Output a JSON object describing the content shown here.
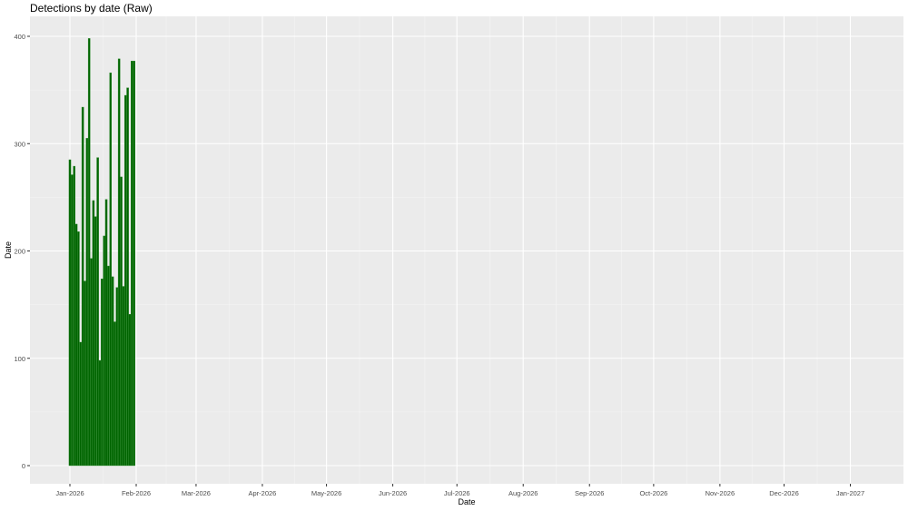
{
  "chart_data": {
    "type": "bar",
    "title": "Detections by date (Raw)",
    "xlabel": "Date",
    "ylabel": "Date",
    "ylim": [
      0,
      400
    ],
    "yticks": [
      0,
      100,
      200,
      300,
      400
    ],
    "xlim": [
      "2025-12-20",
      "2027-01-14"
    ],
    "xtick_labels": [
      "Jan-2026",
      "Feb-2026",
      "Mar-2026",
      "Apr-2026",
      "May-2026",
      "Jun-2026",
      "Jul-2026",
      "Aug-2026",
      "Sep-2026",
      "Oct-2026",
      "Nov-2026",
      "Dec-2026",
      "Jan-2027"
    ],
    "xtick_dates": [
      "2026-01-01",
      "2026-02-01",
      "2026-03-01",
      "2026-04-01",
      "2026-05-01",
      "2026-06-01",
      "2026-07-01",
      "2026-08-01",
      "2026-09-01",
      "2026-10-01",
      "2026-11-01",
      "2026-12-01",
      "2027-01-01"
    ],
    "x": [
      "2026-01-01",
      "2026-01-02",
      "2026-01-03",
      "2026-01-04",
      "2026-01-05",
      "2026-01-06",
      "2026-01-07",
      "2026-01-08",
      "2026-01-09",
      "2026-01-10",
      "2026-01-11",
      "2026-01-12",
      "2026-01-13",
      "2026-01-14",
      "2026-01-15",
      "2026-01-16",
      "2026-01-17",
      "2026-01-18",
      "2026-01-19",
      "2026-01-20",
      "2026-01-21",
      "2026-01-22",
      "2026-01-23",
      "2026-01-24",
      "2026-01-25",
      "2026-01-26",
      "2026-01-27",
      "2026-01-28",
      "2026-01-29",
      "2026-01-30",
      "2026-01-31"
    ],
    "values": [
      285,
      271,
      279,
      225,
      218,
      115,
      334,
      172,
      305,
      398,
      193,
      247,
      232,
      287,
      98,
      174,
      214,
      248,
      186,
      366,
      176,
      134,
      166,
      379,
      269,
      167,
      345,
      352,
      141,
      377,
      377
    ],
    "bar_color": "#006400",
    "grid": true,
    "panel_background": "#ebebeb"
  }
}
